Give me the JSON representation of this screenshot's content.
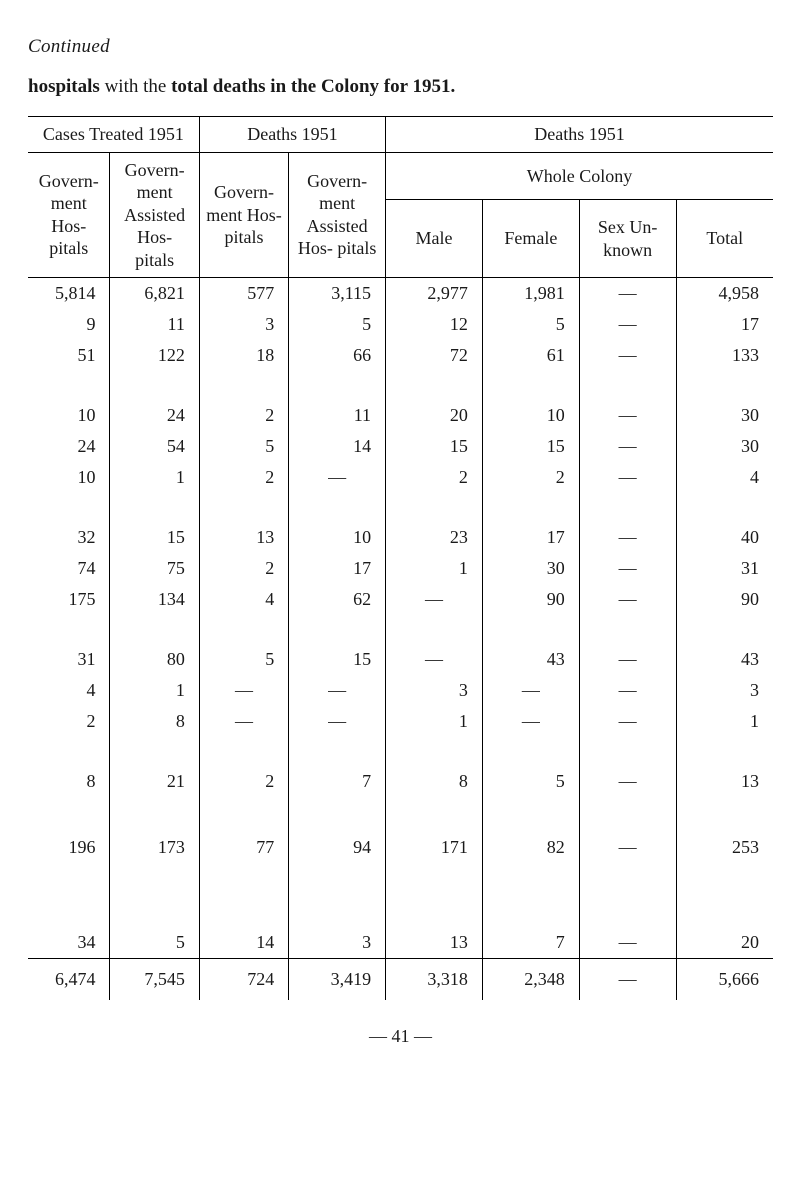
{
  "continued": "Continued",
  "title_prefix": "hospitals",
  "title_with": " with the ",
  "title_total": "total deaths in the Colony for 1951.",
  "headers": {
    "cases_treated": "Cases Treated 1951",
    "deaths_1951_a": "Deaths 1951",
    "deaths_1951_b": "Deaths 1951",
    "govt_hosp": "Govern- ment Hos- pitals",
    "govt_assist_hosp": "Govern- ment Assisted Hos- pitals",
    "whole_colony": "Whole Colony",
    "male": "Male",
    "female": "Female",
    "sex_unknown": "Sex Un- known",
    "total": "Total"
  },
  "rows": [
    [
      "5,814",
      "6,821",
      "577",
      "3,115",
      "2,977",
      "1,981",
      "—",
      "4,958"
    ],
    [
      "9",
      "11",
      "3",
      "5",
      "12",
      "5",
      "—",
      "17"
    ],
    [
      "51",
      "122",
      "18",
      "66",
      "72",
      "61",
      "—",
      "133"
    ],
    [
      "10",
      "24",
      "2",
      "11",
      "20",
      "10",
      "—",
      "30"
    ],
    [
      "24",
      "54",
      "5",
      "14",
      "15",
      "15",
      "—",
      "30"
    ],
    [
      "10",
      "1",
      "2",
      "—",
      "2",
      "2",
      "—",
      "4"
    ],
    [
      "32",
      "15",
      "13",
      "10",
      "23",
      "17",
      "—",
      "40"
    ],
    [
      "74",
      "75",
      "2",
      "17",
      "1",
      "30",
      "—",
      "31"
    ],
    [
      "175",
      "134",
      "4",
      "62",
      "—",
      "90",
      "—",
      "90"
    ],
    [
      "31",
      "80",
      "5",
      "15",
      "—",
      "43",
      "—",
      "43"
    ],
    [
      "4",
      "1",
      "—",
      "—",
      "3",
      "—",
      "—",
      "3"
    ],
    [
      "2",
      "8",
      "—",
      "—",
      "1",
      "—",
      "—",
      "1"
    ],
    [
      "8",
      "21",
      "2",
      "7",
      "8",
      "5",
      "—",
      "13"
    ],
    [
      "196",
      "173",
      "77",
      "94",
      "171",
      "82",
      "—",
      "253"
    ],
    [
      "34",
      "5",
      "14",
      "3",
      "13",
      "7",
      "—",
      "20"
    ]
  ],
  "totals": [
    "6,474",
    "7,545",
    "724",
    "3,419",
    "3,318",
    "2,348",
    "—",
    "5,666"
  ],
  "page_number": "— 41 —"
}
